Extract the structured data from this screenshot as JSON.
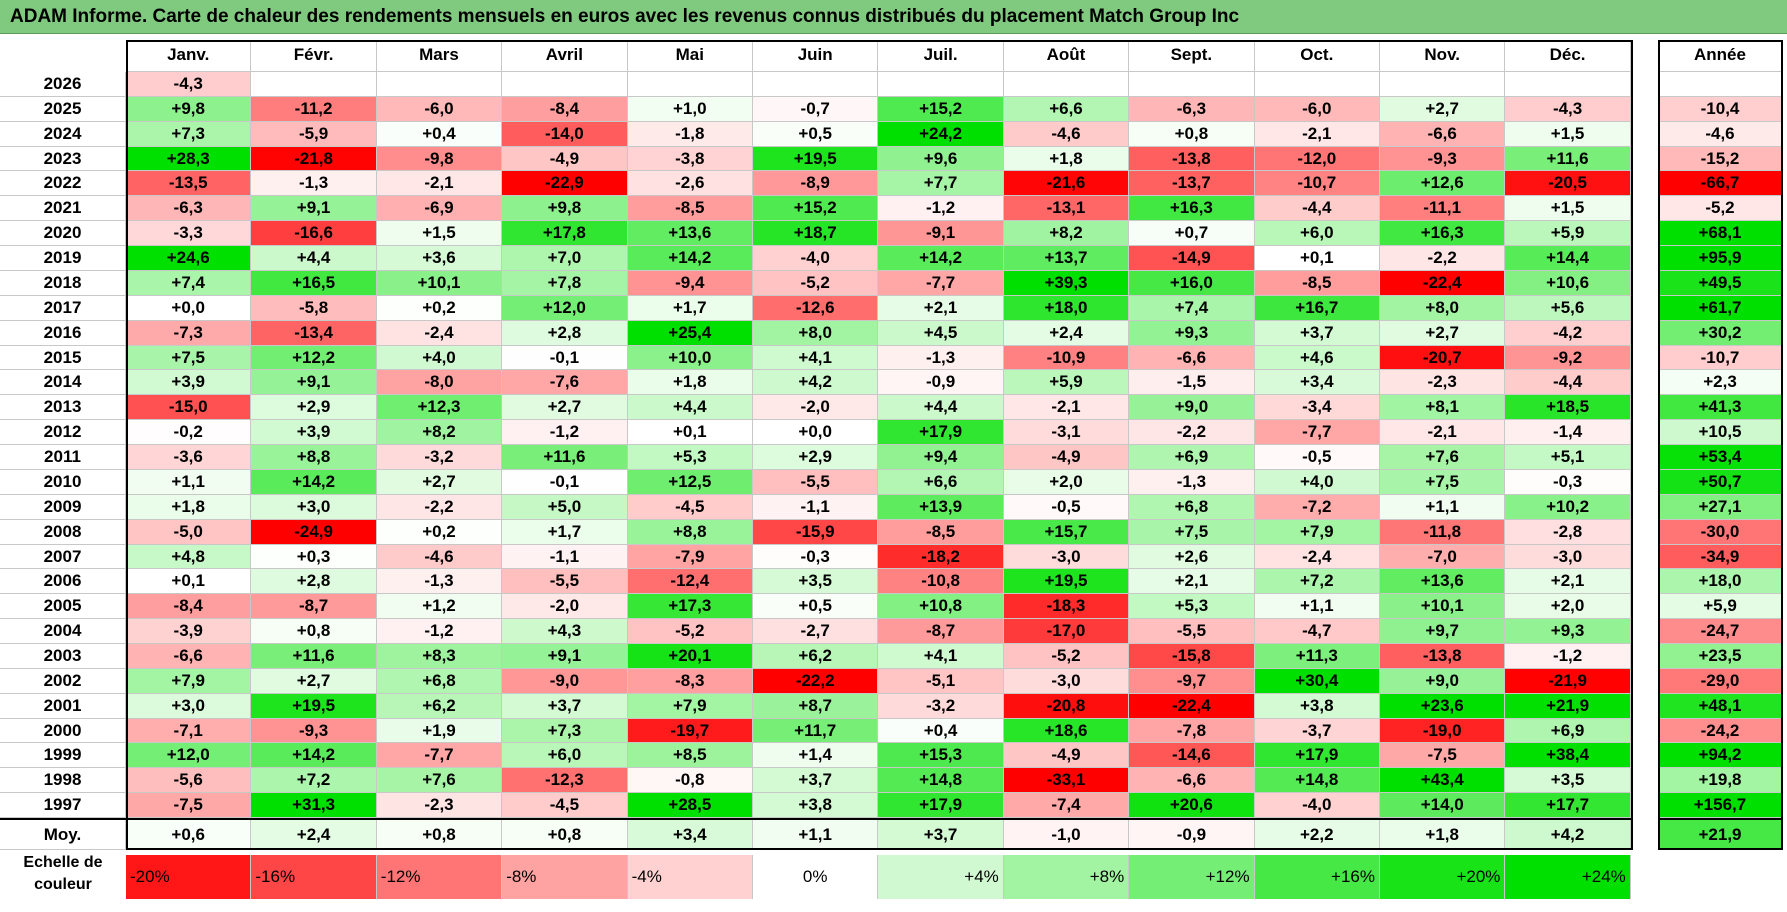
{
  "title": "ADAM Informe. Carte de chaleur des rendements mensuels en euros avec les revenus connus distribués du placement Match Group Inc",
  "chart_data": {
    "type": "heatmap",
    "title": "ADAM Informe. Carte de chaleur des rendements mensuels en euros avec les revenus connus distribués du placement Match Group Inc",
    "columns": [
      "Janv.",
      "Févr.",
      "Mars",
      "Avril",
      "Mai",
      "Juin",
      "Juil.",
      "Août",
      "Sept.",
      "Oct.",
      "Nov.",
      "Déc."
    ],
    "annual_header": "Année",
    "rows": [
      {
        "year": "2026",
        "values": [
          "-4,3",
          "",
          "",
          "",
          "",
          "",
          "",
          "",
          "",
          "",
          "",
          ""
        ],
        "annual": ""
      },
      {
        "year": "2025",
        "values": [
          "+9,8",
          "-11,2",
          "-6,0",
          "-8,4",
          "+1,0",
          "-0,7",
          "+15,2",
          "+6,6",
          "-6,3",
          "-6,0",
          "+2,7",
          "-4,3"
        ],
        "annual": "-10,4"
      },
      {
        "year": "2024",
        "values": [
          "+7,3",
          "-5,9",
          "+0,4",
          "-14,0",
          "-1,8",
          "+0,5",
          "+24,2",
          "-4,6",
          "+0,8",
          "-2,1",
          "-6,6",
          "+1,5"
        ],
        "annual": "-4,6"
      },
      {
        "year": "2023",
        "values": [
          "+28,3",
          "-21,8",
          "-9,8",
          "-4,9",
          "-3,8",
          "+19,5",
          "+9,6",
          "+1,8",
          "-13,8",
          "-12,0",
          "-9,3",
          "+11,6"
        ],
        "annual": "-15,2"
      },
      {
        "year": "2022",
        "values": [
          "-13,5",
          "-1,3",
          "-2,1",
          "-22,9",
          "-2,6",
          "-8,9",
          "+7,7",
          "-21,6",
          "-13,7",
          "-10,7",
          "+12,6",
          "-20,5"
        ],
        "annual": "-66,7"
      },
      {
        "year": "2021",
        "values": [
          "-6,3",
          "+9,1",
          "-6,9",
          "+9,8",
          "-8,5",
          "+15,2",
          "-1,2",
          "-13,1",
          "+16,3",
          "-4,4",
          "-11,1",
          "+1,5"
        ],
        "annual": "-5,2"
      },
      {
        "year": "2020",
        "values": [
          "-3,3",
          "-16,6",
          "+1,5",
          "+17,8",
          "+13,6",
          "+18,7",
          "-9,1",
          "+8,2",
          "+0,7",
          "+6,0",
          "+16,3",
          "+5,9"
        ],
        "annual": "+68,1"
      },
      {
        "year": "2019",
        "values": [
          "+24,6",
          "+4,4",
          "+3,6",
          "+7,0",
          "+14,2",
          "-4,0",
          "+14,2",
          "+13,7",
          "-14,9",
          "+0,1",
          "-2,2",
          "+14,4"
        ],
        "annual": "+95,9"
      },
      {
        "year": "2018",
        "values": [
          "+7,4",
          "+16,5",
          "+10,1",
          "+7,8",
          "-9,4",
          "-5,2",
          "-7,7",
          "+39,3",
          "+16,0",
          "-8,5",
          "-22,4",
          "+10,6"
        ],
        "annual": "+49,5"
      },
      {
        "year": "2017",
        "values": [
          "+0,0",
          "-5,8",
          "+0,2",
          "+12,0",
          "+1,7",
          "-12,6",
          "+2,1",
          "+18,0",
          "+7,4",
          "+16,7",
          "+8,0",
          "+5,6"
        ],
        "annual": "+61,7"
      },
      {
        "year": "2016",
        "values": [
          "-7,3",
          "-13,4",
          "-2,4",
          "+2,8",
          "+25,4",
          "+8,0",
          "+4,5",
          "+2,4",
          "+9,3",
          "+3,7",
          "+2,7",
          "-4,2"
        ],
        "annual": "+30,2"
      },
      {
        "year": "2015",
        "values": [
          "+7,5",
          "+12,2",
          "+4,0",
          "-0,1",
          "+10,0",
          "+4,1",
          "-1,3",
          "-10,9",
          "-6,6",
          "+4,6",
          "-20,7",
          "-9,2"
        ],
        "annual": "-10,7"
      },
      {
        "year": "2014",
        "values": [
          "+3,9",
          "+9,1",
          "-8,0",
          "-7,6",
          "+1,8",
          "+4,2",
          "-0,9",
          "+5,9",
          "-1,5",
          "+3,4",
          "-2,3",
          "-4,4"
        ],
        "annual": "+2,3"
      },
      {
        "year": "2013",
        "values": [
          "-15,0",
          "+2,9",
          "+12,3",
          "+2,7",
          "+4,4",
          "-2,0",
          "+4,4",
          "-2,1",
          "+9,0",
          "-3,4",
          "+8,1",
          "+18,5"
        ],
        "annual": "+41,3"
      },
      {
        "year": "2012",
        "values": [
          "-0,2",
          "+3,9",
          "+8,2",
          "-1,2",
          "+0,1",
          "+0,0",
          "+17,9",
          "-3,1",
          "-2,2",
          "-7,7",
          "-2,1",
          "-1,4"
        ],
        "annual": "+10,5"
      },
      {
        "year": "2011",
        "values": [
          "-3,6",
          "+8,8",
          "-3,2",
          "+11,6",
          "+5,3",
          "+2,9",
          "+9,4",
          "-4,9",
          "+6,9",
          "-0,5",
          "+7,6",
          "+5,1"
        ],
        "annual": "+53,4"
      },
      {
        "year": "2010",
        "values": [
          "+1,1",
          "+14,2",
          "+2,7",
          "-0,1",
          "+12,5",
          "-5,5",
          "+6,6",
          "+2,0",
          "-1,3",
          "+4,0",
          "+7,5",
          "-0,3"
        ],
        "annual": "+50,7"
      },
      {
        "year": "2009",
        "values": [
          "+1,8",
          "+3,0",
          "-2,2",
          "+5,0",
          "-4,5",
          "-1,1",
          "+13,9",
          "-0,5",
          "+6,8",
          "-7,2",
          "+1,1",
          "+10,2"
        ],
        "annual": "+27,1"
      },
      {
        "year": "2008",
        "values": [
          "-5,0",
          "-24,9",
          "+0,2",
          "+1,7",
          "+8,8",
          "-15,9",
          "-8,5",
          "+15,7",
          "+7,5",
          "+7,9",
          "-11,8",
          "-2,8"
        ],
        "annual": "-30,0"
      },
      {
        "year": "2007",
        "values": [
          "+4,8",
          "+0,3",
          "-4,6",
          "-1,1",
          "-7,9",
          "-0,3",
          "-18,2",
          "-3,0",
          "+2,6",
          "-2,4",
          "-7,0",
          "-3,0"
        ],
        "annual": "-34,9"
      },
      {
        "year": "2006",
        "values": [
          "+0,1",
          "+2,8",
          "-1,3",
          "-5,5",
          "-12,4",
          "+3,5",
          "-10,8",
          "+19,5",
          "+2,1",
          "+7,2",
          "+13,6",
          "+2,1"
        ],
        "annual": "+18,0"
      },
      {
        "year": "2005",
        "values": [
          "-8,4",
          "-8,7",
          "+1,2",
          "-2,0",
          "+17,3",
          "+0,5",
          "+10,8",
          "-18,3",
          "+5,3",
          "+1,1",
          "+10,1",
          "+2,0"
        ],
        "annual": "+5,9"
      },
      {
        "year": "2004",
        "values": [
          "-3,9",
          "+0,8",
          "-1,2",
          "+4,3",
          "-5,2",
          "-2,7",
          "-8,7",
          "-17,0",
          "-5,5",
          "-4,7",
          "+9,7",
          "+9,3"
        ],
        "annual": "-24,7"
      },
      {
        "year": "2003",
        "values": [
          "-6,6",
          "+11,6",
          "+8,3",
          "+9,1",
          "+20,1",
          "+6,2",
          "+4,1",
          "-5,2",
          "-15,8",
          "+11,3",
          "-13,8",
          "-1,2"
        ],
        "annual": "+23,5"
      },
      {
        "year": "2002",
        "values": [
          "+7,9",
          "+2,7",
          "+6,8",
          "-9,0",
          "-8,3",
          "-22,2",
          "-5,1",
          "-3,0",
          "-9,7",
          "+30,4",
          "+9,0",
          "-21,9"
        ],
        "annual": "-29,0"
      },
      {
        "year": "2001",
        "values": [
          "+3,0",
          "+19,5",
          "+6,2",
          "+3,7",
          "+7,9",
          "+8,7",
          "-3,2",
          "-20,8",
          "-22,4",
          "+3,8",
          "+23,6",
          "+21,9"
        ],
        "annual": "+48,1"
      },
      {
        "year": "2000",
        "values": [
          "-7,1",
          "-9,3",
          "+1,9",
          "+7,3",
          "-19,7",
          "+11,7",
          "+0,4",
          "+18,6",
          "-7,8",
          "-3,7",
          "-19,0",
          "+6,9"
        ],
        "annual": "-24,2"
      },
      {
        "year": "1999",
        "values": [
          "+12,0",
          "+14,2",
          "-7,7",
          "+6,0",
          "+8,5",
          "+1,4",
          "+15,3",
          "-4,9",
          "-14,6",
          "+17,9",
          "-7,5",
          "+38,4"
        ],
        "annual": "+94,2"
      },
      {
        "year": "1998",
        "values": [
          "-5,6",
          "+7,2",
          "+7,6",
          "-12,3",
          "-0,8",
          "+3,7",
          "+14,8",
          "-33,1",
          "-6,6",
          "+14,8",
          "+43,4",
          "+3,5"
        ],
        "annual": "+19,8"
      },
      {
        "year": "1997",
        "values": [
          "-7,5",
          "+31,3",
          "-2,3",
          "-4,5",
          "+28,5",
          "+3,8",
          "+17,9",
          "-7,4",
          "+20,6",
          "-4,0",
          "+14,0",
          "+17,7"
        ],
        "annual": "+156,7"
      }
    ],
    "average": {
      "label": "Moy.",
      "values": [
        "+0,6",
        "+2,4",
        "+0,8",
        "+0,8",
        "+3,4",
        "+1,1",
        "+3,7",
        "-1,0",
        "-0,9",
        "+2,2",
        "+1,8",
        "+4,2"
      ],
      "annual": "+21,9"
    },
    "legend": {
      "label": "Echelle de couleur",
      "stops": [
        "-20%",
        "-16%",
        "-12%",
        "-8%",
        "-4%",
        "0%",
        "+4%",
        "+8%",
        "+12%",
        "+16%",
        "+20%",
        "+24%"
      ]
    },
    "colors": {
      "negative_max": "#ff0000",
      "neutral": "#ffffff",
      "positive_max": "#00e000",
      "title_bg": "#7fca7f"
    }
  }
}
